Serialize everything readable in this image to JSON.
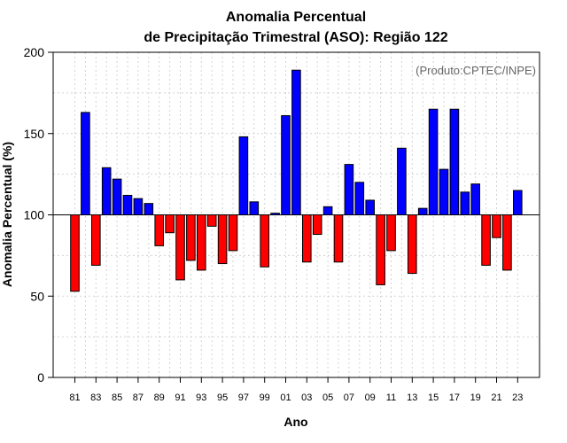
{
  "chart_data": {
    "type": "bar",
    "title_line1": "Anomalia Percentual",
    "title_line2": "de Precipitação Trimestral (ASO): Região 122",
    "xlabel": "Ano",
    "ylabel": "Anomalia Percentual (%)",
    "credit": "(Produto:CPTEC/INPE)",
    "baseline": 100,
    "ylim": [
      0,
      200
    ],
    "yticks": [
      0,
      50,
      100,
      150,
      200
    ],
    "years": [
      1981,
      1982,
      1983,
      1984,
      1985,
      1986,
      1987,
      1988,
      1989,
      1990,
      1991,
      1992,
      1993,
      1994,
      1995,
      1996,
      1997,
      1998,
      1999,
      2000,
      2001,
      2002,
      2003,
      2004,
      2005,
      2006,
      2007,
      2008,
      2009,
      2010,
      2011,
      2012,
      2013,
      2014,
      2015,
      2016,
      2017,
      2018,
      2019,
      2020,
      2021,
      2022,
      2023
    ],
    "values": [
      53,
      163,
      69,
      129,
      122,
      112,
      110,
      107,
      81,
      89,
      60,
      72,
      66,
      93,
      70,
      78,
      148,
      108,
      68,
      101,
      161,
      189,
      71,
      88,
      105,
      71,
      131,
      120,
      109,
      57,
      78,
      141,
      64,
      104,
      165,
      128,
      165,
      114,
      119,
      69,
      86,
      66,
      115
    ],
    "xtick_labels": [
      "81",
      "83",
      "85",
      "87",
      "89",
      "91",
      "93",
      "95",
      "97",
      "99",
      "01",
      "03",
      "05",
      "07",
      "09",
      "11",
      "13",
      "15",
      "17",
      "19",
      "21",
      "23"
    ],
    "xtick_years": [
      1981,
      1983,
      1985,
      1987,
      1989,
      1991,
      1993,
      1995,
      1997,
      1999,
      2001,
      2003,
      2005,
      2007,
      2009,
      2011,
      2013,
      2015,
      2017,
      2019,
      2021,
      2023
    ],
    "colors": {
      "positive": "#0000ff",
      "negative": "#ff0000",
      "grid": "#d3d3d3"
    },
    "grid": true
  }
}
